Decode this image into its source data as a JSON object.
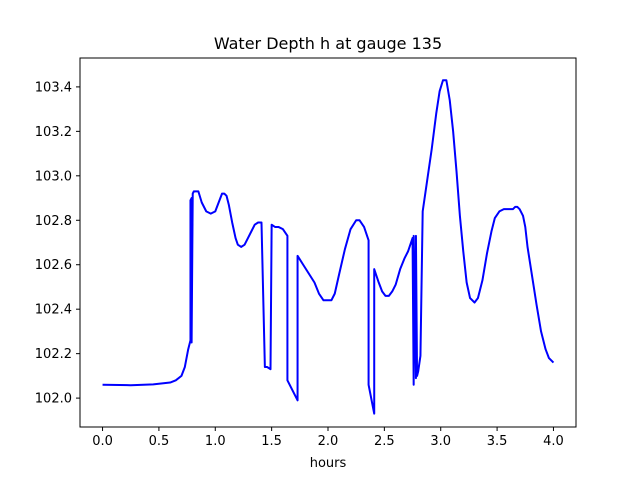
{
  "chart_data": {
    "type": "line",
    "title": "Water Depth h at gauge 135",
    "xlabel": "hours",
    "ylabel": "",
    "xlim": [
      -0.2,
      4.2
    ],
    "ylim": [
      101.87,
      103.53
    ],
    "xticks": [
      0.0,
      0.5,
      1.0,
      1.5,
      2.0,
      2.5,
      3.0,
      3.5,
      4.0
    ],
    "xtick_labels": [
      "0.0",
      "0.5",
      "1.0",
      "1.5",
      "2.0",
      "2.5",
      "3.0",
      "3.5",
      "4.0"
    ],
    "yticks": [
      102.0,
      102.2,
      102.4,
      102.6,
      102.8,
      103.0,
      103.2,
      103.4
    ],
    "ytick_labels": [
      "102.0",
      "102.2",
      "102.4",
      "102.6",
      "102.8",
      "103.0",
      "103.2",
      "103.4"
    ],
    "grid": false,
    "series": [
      {
        "color": "#0000ff",
        "x": [
          0.0,
          0.25,
          0.45,
          0.6,
          0.65,
          0.7,
          0.73,
          0.76,
          0.78,
          0.78,
          0.79,
          0.79,
          0.8,
          0.81,
          0.85,
          0.88,
          0.92,
          0.96,
          1.0,
          1.03,
          1.06,
          1.08,
          1.1,
          1.12,
          1.15,
          1.18,
          1.2,
          1.23,
          1.26,
          1.29,
          1.32,
          1.35,
          1.38,
          1.41,
          1.44,
          1.44,
          1.46,
          1.49,
          1.5,
          1.5,
          1.53,
          1.56,
          1.6,
          1.64,
          1.64,
          1.73,
          1.73,
          1.78,
          1.83,
          1.88,
          1.92,
          1.96,
          2.0,
          2.03,
          2.06,
          2.1,
          2.15,
          2.2,
          2.25,
          2.28,
          2.32,
          2.36,
          2.36,
          2.41,
          2.41,
          2.45,
          2.48,
          2.51,
          2.54,
          2.57,
          2.6,
          2.64,
          2.68,
          2.71,
          2.75,
          2.76,
          2.76,
          2.78,
          2.78,
          2.79,
          2.8,
          2.82,
          2.84,
          2.84,
          2.88,
          2.92,
          2.96,
          2.99,
          3.02,
          3.05,
          3.08,
          3.11,
          3.14,
          3.17,
          3.2,
          3.23,
          3.26,
          3.3,
          3.33,
          3.37,
          3.41,
          3.45,
          3.48,
          3.52,
          3.56,
          3.6,
          3.64,
          3.66,
          3.68,
          3.7,
          3.73,
          3.75,
          3.77,
          3.81,
          3.85,
          3.89,
          3.93,
          3.96,
          4.0
        ],
        "values": [
          102.06,
          102.058,
          102.062,
          102.07,
          102.08,
          102.1,
          102.14,
          102.22,
          102.26,
          102.89,
          102.9,
          102.25,
          102.92,
          102.93,
          102.93,
          102.88,
          102.84,
          102.83,
          102.84,
          102.88,
          102.92,
          102.92,
          102.91,
          102.87,
          102.79,
          102.72,
          102.69,
          102.68,
          102.69,
          102.72,
          102.75,
          102.78,
          102.79,
          102.79,
          102.14,
          102.14,
          102.14,
          102.13,
          102.78,
          102.78,
          102.77,
          102.77,
          102.76,
          102.73,
          102.08,
          101.99,
          102.64,
          102.6,
          102.56,
          102.52,
          102.47,
          102.44,
          102.44,
          102.44,
          102.47,
          102.56,
          102.67,
          102.76,
          102.8,
          102.8,
          102.77,
          102.71,
          102.06,
          101.93,
          102.58,
          102.52,
          102.48,
          102.46,
          102.46,
          102.48,
          102.51,
          102.58,
          102.63,
          102.66,
          102.72,
          102.06,
          102.73,
          102.09,
          102.73,
          102.1,
          102.12,
          102.19,
          102.84,
          102.84,
          102.98,
          103.12,
          103.28,
          103.38,
          103.43,
          103.43,
          103.34,
          103.2,
          103.02,
          102.82,
          102.66,
          102.52,
          102.45,
          102.43,
          102.45,
          102.53,
          102.65,
          102.75,
          102.81,
          102.84,
          102.85,
          102.85,
          102.85,
          102.86,
          102.86,
          102.85,
          102.82,
          102.77,
          102.68,
          102.55,
          102.42,
          102.3,
          102.22,
          102.18,
          102.16
        ]
      }
    ]
  }
}
